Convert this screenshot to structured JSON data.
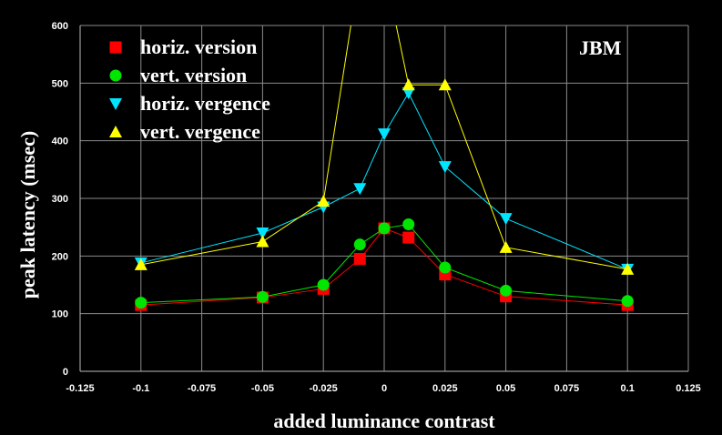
{
  "chart_data": {
    "type": "line",
    "xlabel": "added luminance contrast",
    "ylabel": "peak latency (msec)",
    "xlim": [
      -0.125,
      0.125
    ],
    "ylim": [
      0,
      600
    ],
    "x_ticks": [
      "-0.125",
      "-0.1",
      "-0.075",
      "-0.05",
      "-0.025",
      "0",
      "0.025",
      "0.05",
      "0.075",
      "0.1",
      "0.125"
    ],
    "y_ticks": [
      "0",
      "100",
      "200",
      "300",
      "400",
      "500",
      "600"
    ],
    "grid": true,
    "legend_position": "top-left",
    "annotation": "JBM",
    "x": [
      -0.1,
      -0.05,
      -0.025,
      -0.01,
      0,
      0.01,
      0.025,
      0.05,
      0.1
    ],
    "series": [
      {
        "name": "horiz. version",
        "color": "#ff0000",
        "marker": "square",
        "values": [
          115,
          128,
          143,
          195,
          248,
          232,
          168,
          130,
          115
        ]
      },
      {
        "name": "vert. version",
        "color": "#00e600",
        "marker": "circle",
        "values": [
          119,
          129,
          150,
          220,
          248,
          255,
          180,
          140,
          122
        ]
      },
      {
        "name": "horiz. vergence",
        "color": "#00e5ff",
        "marker": "triangle-down",
        "values": [
          188,
          240,
          285,
          317,
          412,
          483,
          355,
          265,
          177
        ]
      },
      {
        "name": "vert. vergence",
        "color": "#ffff00",
        "marker": "triangle-up",
        "values": [
          185,
          225,
          295,
          700,
          700,
          497,
          497,
          215,
          177
        ]
      }
    ]
  }
}
